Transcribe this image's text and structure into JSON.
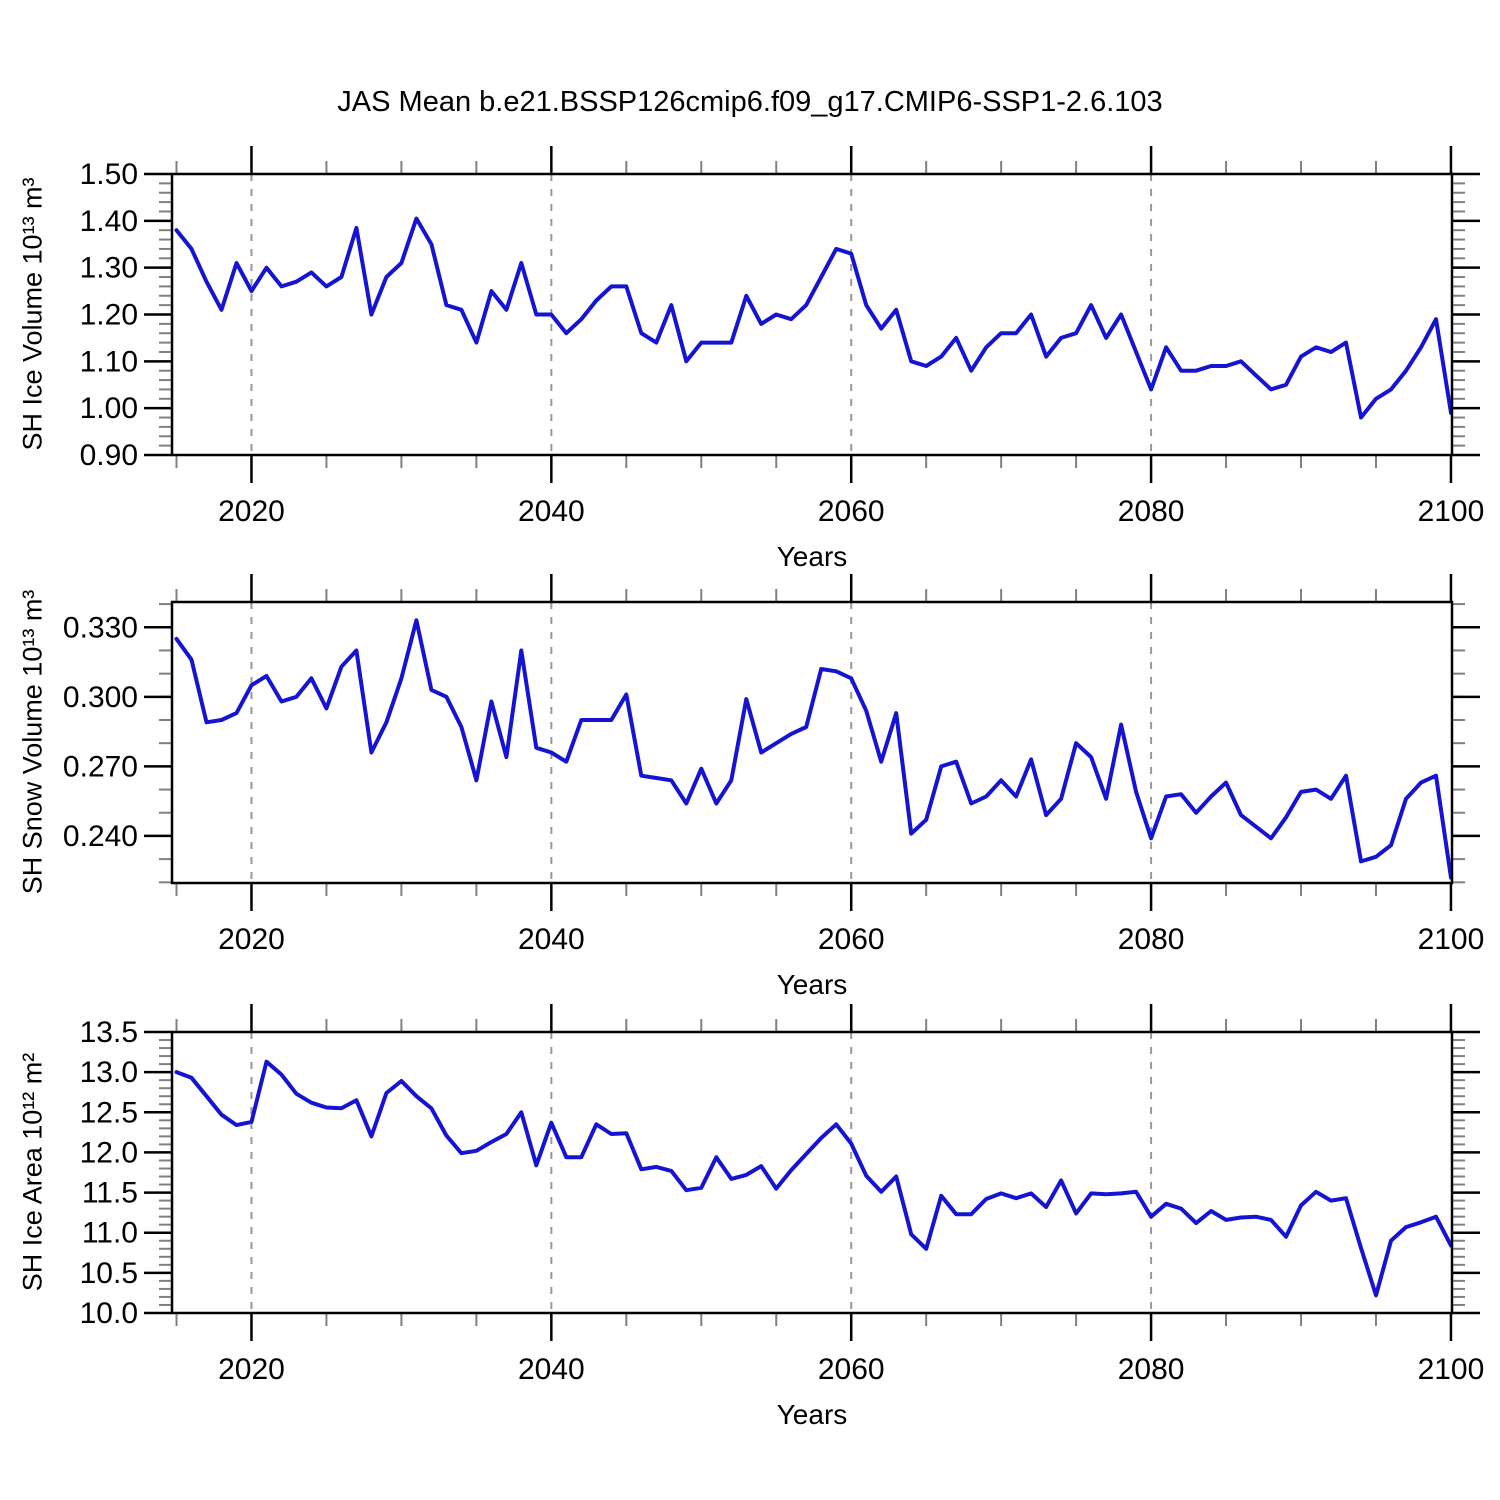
{
  "title": "JAS Mean b.e21.BSSP126cmip6.f09_g17.CMIP6-SSP1-2.6.103",
  "chart_data": {
    "type": "line",
    "title": "JAS Mean b.e21.BSSP126cmip6.f09_g17.CMIP6-SSP1-2.6.103",
    "line_color": "#1414d2",
    "gridline_color": "#999999",
    "legend": "none",
    "x": {
      "label": "Years",
      "start": 2015,
      "end": 2100,
      "step": 1,
      "xlim": [
        2014.7,
        2100.07
      ],
      "major_ticks": [
        2020,
        2040,
        2060,
        2080,
        2100
      ],
      "major_tick_labels": [
        "2020",
        "2040",
        "2060",
        "2080",
        "2100"
      ],
      "minor_tick_step": 5,
      "dashed_gridlines": [
        2020,
        2040,
        2060,
        2080
      ]
    },
    "panels": [
      {
        "name": "sh-ice-volume",
        "ylabel": "SH Ice Volume 10¹³ m³",
        "ylim": [
          0.9,
          1.5
        ],
        "ytick_labels": [
          "0.90",
          "1.00",
          "1.10",
          "1.20",
          "1.30",
          "1.40",
          "1.50"
        ],
        "ytick_minor_step": 0.02,
        "values": [
          1.38,
          1.34,
          1.27,
          1.21,
          1.31,
          1.25,
          1.3,
          1.26,
          1.27,
          1.29,
          1.26,
          1.28,
          1.385,
          1.2,
          1.28,
          1.31,
          1.405,
          1.35,
          1.22,
          1.21,
          1.14,
          1.25,
          1.21,
          1.31,
          1.2,
          1.2,
          1.16,
          1.19,
          1.23,
          1.26,
          1.26,
          1.16,
          1.14,
          1.22,
          1.1,
          1.14,
          1.14,
          1.14,
          1.24,
          1.18,
          1.2,
          1.19,
          1.22,
          1.28,
          1.34,
          1.33,
          1.22,
          1.17,
          1.21,
          1.1,
          1.09,
          1.11,
          1.15,
          1.08,
          1.13,
          1.16,
          1.16,
          1.2,
          1.11,
          1.15,
          1.16,
          1.22,
          1.15,
          1.2,
          1.12,
          1.04,
          1.13,
          1.08,
          1.08,
          1.09,
          1.09,
          1.1,
          1.07,
          1.04,
          1.05,
          1.11,
          1.13,
          1.12,
          1.14,
          0.98,
          1.02,
          1.04,
          1.08,
          1.13,
          1.19,
          0.99
        ]
      },
      {
        "name": "sh-snow-volume",
        "ylabel": "SH Snow Volume 10¹³ m³",
        "ylim": [
          0.2197,
          0.3409
        ],
        "ytick_labels": [
          "0.240",
          "0.270",
          "0.300",
          "0.330"
        ],
        "ytick_minor_step": 0.01,
        "values": [
          0.325,
          0.316,
          0.289,
          0.29,
          0.293,
          0.305,
          0.309,
          0.298,
          0.3,
          0.308,
          0.295,
          0.313,
          0.32,
          0.276,
          0.289,
          0.308,
          0.333,
          0.303,
          0.3,
          0.287,
          0.264,
          0.298,
          0.274,
          0.32,
          0.278,
          0.276,
          0.272,
          0.29,
          0.29,
          0.29,
          0.301,
          0.266,
          0.265,
          0.264,
          0.254,
          0.269,
          0.254,
          0.264,
          0.299,
          0.276,
          0.28,
          0.284,
          0.287,
          0.312,
          0.311,
          0.308,
          0.294,
          0.272,
          0.293,
          0.241,
          0.247,
          0.27,
          0.272,
          0.254,
          0.257,
          0.264,
          0.257,
          0.273,
          0.249,
          0.256,
          0.28,
          0.274,
          0.256,
          0.288,
          0.259,
          0.239,
          0.257,
          0.258,
          0.25,
          0.257,
          0.263,
          0.249,
          0.244,
          0.239,
          0.248,
          0.259,
          0.26,
          0.256,
          0.266,
          0.229,
          0.231,
          0.236,
          0.256,
          0.263,
          0.266,
          0.222
        ]
      },
      {
        "name": "sh-ice-area",
        "ylabel": "SH Ice Area 10¹² m²",
        "ylim": [
          10.0,
          13.5
        ],
        "ytick_labels": [
          "10.0",
          "10.5",
          "11.0",
          "11.5",
          "12.0",
          "12.5",
          "13.0",
          "13.5"
        ],
        "ytick_minor_step": 0.1,
        "values": [
          13.0,
          12.93,
          12.7,
          12.47,
          12.34,
          12.38,
          13.13,
          12.97,
          12.73,
          12.62,
          12.56,
          12.55,
          12.65,
          12.2,
          12.74,
          12.89,
          12.7,
          12.55,
          12.21,
          11.99,
          12.02,
          12.13,
          12.23,
          12.5,
          11.84,
          12.37,
          11.94,
          11.94,
          12.35,
          12.23,
          12.24,
          11.79,
          11.82,
          11.77,
          11.53,
          11.56,
          11.94,
          11.67,
          11.72,
          11.83,
          11.55,
          11.78,
          11.98,
          12.18,
          12.35,
          12.11,
          11.71,
          11.51,
          11.7,
          10.98,
          10.8,
          11.46,
          11.23,
          11.23,
          11.42,
          11.49,
          11.43,
          11.49,
          11.32,
          11.65,
          11.24,
          11.49,
          11.48,
          11.49,
          11.51,
          11.2,
          11.36,
          11.3,
          11.12,
          11.27,
          11.16,
          11.19,
          11.2,
          11.16,
          10.95,
          11.34,
          11.51,
          11.4,
          11.43,
          10.81,
          10.22,
          10.9,
          11.07,
          11.13,
          11.2,
          10.84
        ]
      }
    ]
  }
}
